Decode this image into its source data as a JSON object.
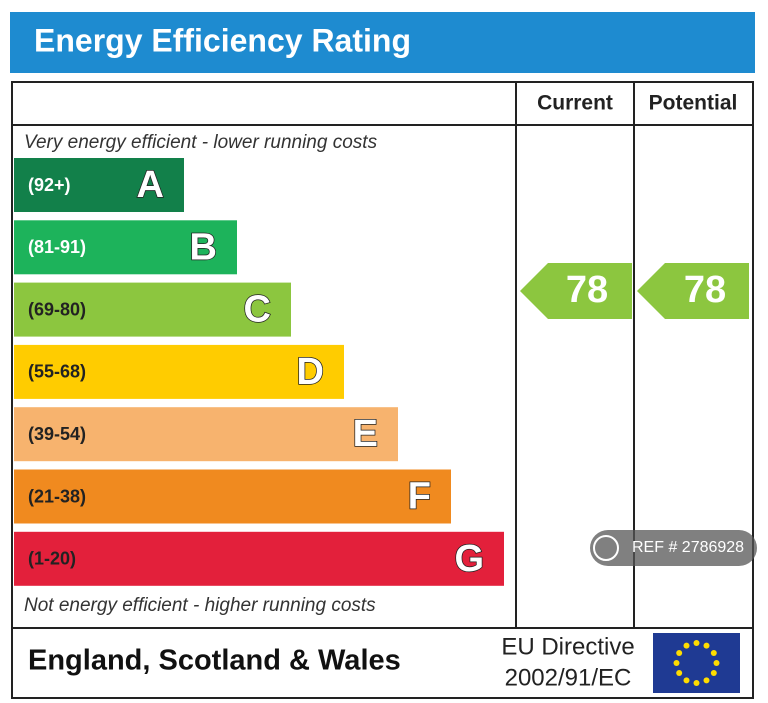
{
  "title": "Energy Efficiency Rating",
  "columns": [
    "Current",
    "Potential"
  ],
  "top_note": "Very energy efficient - lower running costs",
  "bottom_note": "Not energy efficient - higher running costs",
  "bands": [
    {
      "range": "(92+)",
      "letter": "A",
      "color": "#12804a"
    },
    {
      "range": "(81-91)",
      "letter": "B",
      "color": "#1db35b"
    },
    {
      "range": "(69-80)",
      "letter": "C",
      "color": "#8cc63f"
    },
    {
      "range": "(55-68)",
      "letter": "D",
      "color": "#ffcc00"
    },
    {
      "range": "(39-54)",
      "letter": "E",
      "color": "#f7b36e"
    },
    {
      "range": "(21-38)",
      "letter": "F",
      "color": "#f08a1f"
    },
    {
      "range": "(1-20)",
      "letter": "G",
      "color": "#e3203b"
    }
  ],
  "current": 78,
  "potential": 78,
  "region": "England, Scotland & Wales",
  "directive": [
    "EU Directive",
    "2002/91/EC"
  ],
  "watermark": "REF # 2786928"
}
